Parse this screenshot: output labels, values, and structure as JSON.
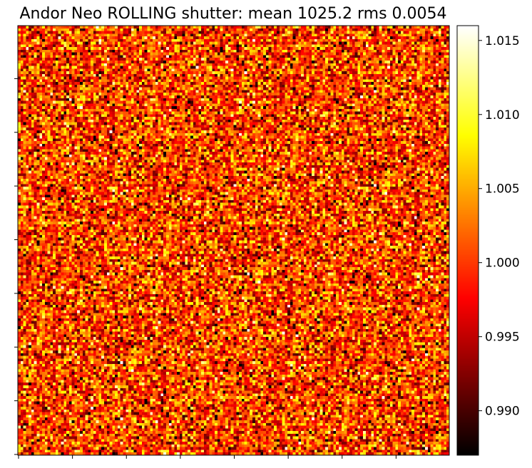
{
  "chart_data": {
    "type": "heatmap",
    "title": "Andor Neo ROLLING shutter: mean 1025.2 rms 0.0054",
    "colormap": "hot",
    "grid_rows": 160,
    "grid_cols": 160,
    "value_mean": 1.0,
    "value_rms": 0.0054,
    "colorbar": {
      "vmin": 0.987,
      "vmax": 1.016,
      "tick_values": [
        0.99,
        0.995,
        1.0,
        1.005,
        1.01,
        1.015
      ],
      "tick_labels": [
        "0.990",
        "0.995",
        "1.000",
        "1.005",
        "1.010",
        "1.015"
      ]
    },
    "x_ticks": {
      "count": 8,
      "labels_visible": false
    },
    "y_ticks": {
      "count": 8,
      "labels_visible": false
    },
    "grid": false
  }
}
